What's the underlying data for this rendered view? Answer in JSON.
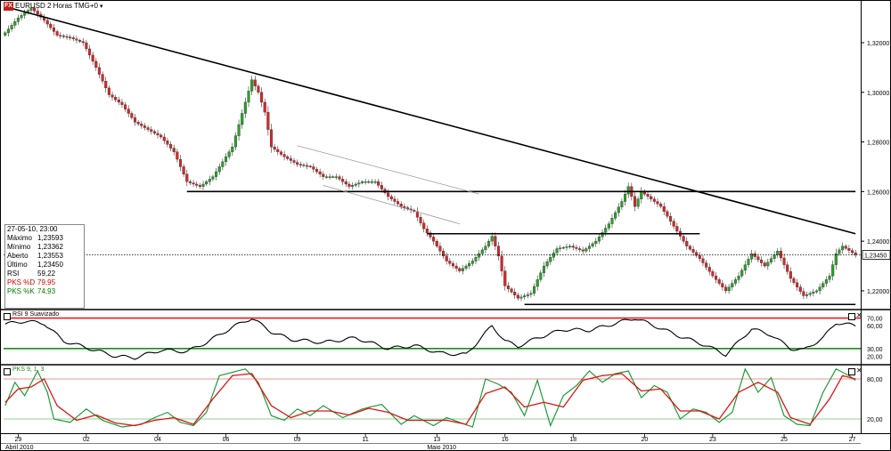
{
  "window": {
    "symbol_label": "EURUSD 2 Horas TMG+0",
    "logo": "FX"
  },
  "price_box": {
    "date": "27-05-10, 23:00",
    "rows": [
      {
        "label": "Máximo",
        "value": "1,23593",
        "style": "normal"
      },
      {
        "label": "Mínimo",
        "value": "1,23362",
        "style": "normal"
      },
      {
        "label": "Aberto",
        "value": "1,23553",
        "style": "normal"
      },
      {
        "label": "Último",
        "value": "1,23450",
        "style": "normal"
      },
      {
        "label": "RSI",
        "value": "59,22",
        "style": "normal"
      },
      {
        "label": "PKS %D",
        "value": "79,95",
        "style": "red"
      },
      {
        "label": "PKS %K",
        "value": "74,93",
        "style": "green"
      }
    ]
  },
  "panels": {
    "rsi_title": "RSI 9 Suavizado",
    "pks_title": "PKS 9, 1, 3"
  },
  "colors": {
    "bull": "#2ca02c",
    "bear": "#d62728",
    "trend": "#000000",
    "rsi_line": "#000000",
    "rsi_upper": "#ee1c1c",
    "rsi_lower": "#1f8a1f",
    "pks_k": "#1f9a3a",
    "pks_d": "#e01414",
    "pks_h1": "#e07070",
    "pks_h2": "#70c070"
  },
  "chart_data": [
    {
      "type": "candlestick",
      "title": "EURUSD 2 Horas TMG+0",
      "xlabel": "",
      "ylabel": "",
      "ylim": [
        1.2128,
        1.3372
      ],
      "yticks": [
        "1,32000",
        "1,30000",
        "1,28000",
        "1,26000",
        "1,24000",
        "1,22000"
      ],
      "ytick_values": [
        1.32,
        1.3,
        1.28,
        1.26,
        1.24,
        1.22
      ],
      "x_tick_labels": [
        "29",
        "02",
        "04",
        "06",
        "09",
        "11",
        "13",
        "16",
        "18",
        "20",
        "23",
        "25",
        "27"
      ],
      "x_month_labels": [
        "Abril 2010",
        "Maio 2010"
      ],
      "last_price_label": "1,23450",
      "last_price": 1.2345,
      "anchors": [
        [
          0,
          1.324
        ],
        [
          4,
          1.33
        ],
        [
          8,
          1.334
        ],
        [
          12,
          1.329
        ],
        [
          16,
          1.323
        ],
        [
          20,
          1.322
        ],
        [
          24,
          1.32
        ],
        [
          28,
          1.31
        ],
        [
          32,
          1.299
        ],
        [
          36,
          1.295
        ],
        [
          40,
          1.288
        ],
        [
          44,
          1.285
        ],
        [
          48,
          1.282
        ],
        [
          52,
          1.276
        ],
        [
          56,
          1.264
        ],
        [
          60,
          1.262
        ],
        [
          64,
          1.266
        ],
        [
          70,
          1.278
        ],
        [
          74,
          1.296
        ],
        [
          76,
          1.305
        ],
        [
          78,
          1.3
        ],
        [
          80,
          1.292
        ],
        [
          82,
          1.278
        ],
        [
          86,
          1.274
        ],
        [
          90,
          1.271
        ],
        [
          94,
          1.27
        ],
        [
          98,
          1.266
        ],
        [
          102,
          1.266
        ],
        [
          106,
          1.262
        ],
        [
          110,
          1.264
        ],
        [
          114,
          1.264
        ],
        [
          118,
          1.258
        ],
        [
          122,
          1.254
        ],
        [
          126,
          1.252
        ],
        [
          129,
          1.245
        ],
        [
          132,
          1.24
        ],
        [
          136,
          1.232
        ],
        [
          140,
          1.228
        ],
        [
          144,
          1.232
        ],
        [
          148,
          1.238
        ],
        [
          150,
          1.242
        ],
        [
          152,
          1.234
        ],
        [
          154,
          1.222
        ],
        [
          158,
          1.217
        ],
        [
          162,
          1.219
        ],
        [
          166,
          1.23
        ],
        [
          170,
          1.237
        ],
        [
          174,
          1.238
        ],
        [
          178,
          1.236
        ],
        [
          182,
          1.24
        ],
        [
          186,
          1.247
        ],
        [
          190,
          1.256
        ],
        [
          192,
          1.262
        ],
        [
          194,
          1.254
        ],
        [
          196,
          1.26
        ],
        [
          198,
          1.258
        ],
        [
          202,
          1.254
        ],
        [
          206,
          1.246
        ],
        [
          210,
          1.238
        ],
        [
          214,
          1.233
        ],
        [
          218,
          1.226
        ],
        [
          222,
          1.22
        ],
        [
          226,
          1.226
        ],
        [
          230,
          1.235
        ],
        [
          234,
          1.23
        ],
        [
          238,
          1.236
        ],
        [
          242,
          1.225
        ],
        [
          246,
          1.218
        ],
        [
          250,
          1.22
        ],
        [
          254,
          1.226
        ],
        [
          256,
          1.235
        ],
        [
          258,
          1.238
        ],
        [
          262,
          1.2345
        ]
      ],
      "annotations": [
        {
          "kind": "trendline",
          "points": [
            [
              0,
              1.3345
            ],
            [
              262,
              1.243
            ]
          ]
        },
        {
          "kind": "hline",
          "y": 1.26,
          "x_range": [
            56,
            262
          ]
        },
        {
          "kind": "hline",
          "y": 1.243,
          "x_range": [
            130,
            214
          ]
        },
        {
          "kind": "hline",
          "y": 1.2145,
          "x_range": [
            160,
            262
          ]
        },
        {
          "kind": "channel",
          "points": [
            [
              90,
              1.2785
            ],
            [
              146,
              1.259
            ]
          ]
        },
        {
          "kind": "channel",
          "points": [
            [
              98,
              1.2625
            ],
            [
              140,
              1.247
            ]
          ]
        }
      ]
    },
    {
      "type": "line",
      "title": "RSI 9 Suavizado",
      "ylim": [
        10,
        80
      ],
      "yticks": [
        "70,00",
        "60,00",
        "30,00",
        "20,00"
      ],
      "ytick_values": [
        70,
        60,
        30,
        20
      ],
      "hlines": [
        70,
        30
      ],
      "series": [
        {
          "name": "RSI 9 Suavizado",
          "anchors": [
            [
              0,
              62
            ],
            [
              6,
              66
            ],
            [
              12,
              63
            ],
            [
              18,
              40
            ],
            [
              26,
              30
            ],
            [
              34,
              20
            ],
            [
              40,
              18
            ],
            [
              48,
              28
            ],
            [
              56,
              26
            ],
            [
              62,
              38
            ],
            [
              70,
              58
            ],
            [
              76,
              70
            ],
            [
              82,
              52
            ],
            [
              88,
              42
            ],
            [
              98,
              38
            ],
            [
              108,
              44
            ],
            [
              118,
              30
            ],
            [
              126,
              34
            ],
            [
              134,
              24
            ],
            [
              142,
              22
            ],
            [
              150,
              60
            ],
            [
              154,
              40
            ],
            [
              158,
              33
            ],
            [
              164,
              44
            ],
            [
              172,
              55
            ],
            [
              180,
              54
            ],
            [
              188,
              63
            ],
            [
              194,
              70
            ],
            [
              200,
              60
            ],
            [
              208,
              46
            ],
            [
              216,
              34
            ],
            [
              222,
              22
            ],
            [
              230,
              56
            ],
            [
              236,
              48
            ],
            [
              242,
              30
            ],
            [
              246,
              28
            ],
            [
              252,
              44
            ],
            [
              256,
              64
            ],
            [
              262,
              60
            ]
          ]
        }
      ]
    },
    {
      "type": "line",
      "title": "PKS 9, 1, 3",
      "ylim": [
        0,
        100
      ],
      "yticks": [
        "80,00",
        "20,00"
      ],
      "ytick_values": [
        80,
        20
      ],
      "hlines": [
        80,
        20
      ],
      "series": [
        {
          "name": "%K",
          "anchors": [
            [
              0,
              40
            ],
            [
              3,
              75
            ],
            [
              6,
              55
            ],
            [
              10,
              92
            ],
            [
              13,
              60
            ],
            [
              15,
              20
            ],
            [
              20,
              15
            ],
            [
              25,
              35
            ],
            [
              30,
              18
            ],
            [
              36,
              8
            ],
            [
              42,
              12
            ],
            [
              46,
              22
            ],
            [
              50,
              30
            ],
            [
              54,
              15
            ],
            [
              58,
              10
            ],
            [
              62,
              30
            ],
            [
              66,
              85
            ],
            [
              70,
              90
            ],
            [
              74,
              95
            ],
            [
              78,
              75
            ],
            [
              82,
              25
            ],
            [
              86,
              18
            ],
            [
              90,
              35
            ],
            [
              94,
              25
            ],
            [
              98,
              40
            ],
            [
              104,
              22
            ],
            [
              110,
              35
            ],
            [
              116,
              42
            ],
            [
              122,
              12
            ],
            [
              126,
              25
            ],
            [
              132,
              10
            ],
            [
              136,
              22
            ],
            [
              140,
              15
            ],
            [
              144,
              8
            ],
            [
              148,
              80
            ],
            [
              152,
              72
            ],
            [
              156,
              60
            ],
            [
              160,
              25
            ],
            [
              164,
              78
            ],
            [
              168,
              10
            ],
            [
              172,
              55
            ],
            [
              176,
              70
            ],
            [
              180,
              92
            ],
            [
              184,
              75
            ],
            [
              188,
              88
            ],
            [
              192,
              92
            ],
            [
              196,
              52
            ],
            [
              200,
              70
            ],
            [
              204,
              60
            ],
            [
              208,
              20
            ],
            [
              212,
              35
            ],
            [
              216,
              30
            ],
            [
              220,
              15
            ],
            [
              224,
              30
            ],
            [
              228,
              95
            ],
            [
              232,
              60
            ],
            [
              236,
              82
            ],
            [
              240,
              25
            ],
            [
              244,
              12
            ],
            [
              248,
              10
            ],
            [
              252,
              60
            ],
            [
              256,
              95
            ],
            [
              260,
              85
            ],
            [
              262,
              78
            ]
          ]
        },
        {
          "name": "%D",
          "anchors": [
            [
              0,
              45
            ],
            [
              4,
              65
            ],
            [
              8,
              68
            ],
            [
              12,
              80
            ],
            [
              16,
              40
            ],
            [
              22,
              18
            ],
            [
              28,
              26
            ],
            [
              34,
              14
            ],
            [
              40,
              10
            ],
            [
              46,
              18
            ],
            [
              52,
              22
            ],
            [
              58,
              12
            ],
            [
              64,
              50
            ],
            [
              70,
              85
            ],
            [
              76,
              88
            ],
            [
              82,
              40
            ],
            [
              88,
              22
            ],
            [
              94,
              32
            ],
            [
              100,
              32
            ],
            [
              106,
              26
            ],
            [
              112,
              36
            ],
            [
              118,
              30
            ],
            [
              124,
              18
            ],
            [
              130,
              18
            ],
            [
              136,
              18
            ],
            [
              142,
              12
            ],
            [
              148,
              58
            ],
            [
              154,
              68
            ],
            [
              160,
              38
            ],
            [
              166,
              45
            ],
            [
              172,
              38
            ],
            [
              178,
              78
            ],
            [
              184,
              85
            ],
            [
              190,
              88
            ],
            [
              196,
              62
            ],
            [
              202,
              65
            ],
            [
              208,
              32
            ],
            [
              214,
              32
            ],
            [
              220,
              20
            ],
            [
              226,
              60
            ],
            [
              232,
              75
            ],
            [
              238,
              60
            ],
            [
              242,
              22
            ],
            [
              248,
              12
            ],
            [
              254,
              50
            ],
            [
              258,
              85
            ],
            [
              262,
              80
            ]
          ]
        }
      ]
    }
  ]
}
